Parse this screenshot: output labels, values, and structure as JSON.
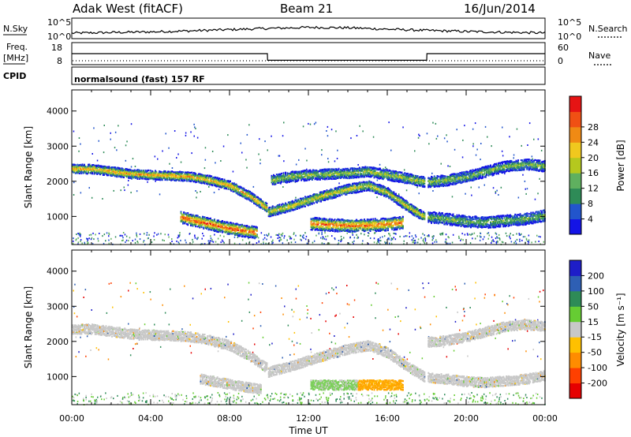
{
  "header": {
    "radar": "Adak West (fitACF)",
    "beam": "Beam 21",
    "date": "16/Jun/2014"
  },
  "strip": {
    "nsky_label": "N.Sky",
    "nsky_ticks": [
      "10^5",
      "10^0"
    ],
    "nsearch_label": "N.Search",
    "nsearch_ticks": [
      "10^5",
      "10^0"
    ],
    "freq_label": "Freq.",
    "freq_unit": "[MHz]",
    "freq_ticks": [
      "18",
      "8"
    ],
    "nave_label": "Nave",
    "nave_ticks": [
      "60",
      "0"
    ],
    "cpid_label": "CPID",
    "cpid_text": "normalsound (fast) 157 RF"
  },
  "panels": {
    "power_ylabel": "Slant Range [km]",
    "velocity_ylabel": "Slant Range [km]",
    "range_ticks": [
      "1000",
      "2000",
      "3000",
      "4000"
    ],
    "xlabel": "Time UT",
    "time_ticks": [
      "00:00",
      "04:00",
      "08:00",
      "12:00",
      "16:00",
      "20:00",
      "00:00"
    ]
  },
  "colorbars": {
    "power_label": "Power [dB]",
    "power_ticks": [
      "4",
      "8",
      "12",
      "16",
      "20",
      "24",
      "28"
    ],
    "power_colors": [
      "#1414e6",
      "#2255cc",
      "#2e8b57",
      "#5fb05f",
      "#b5c81e",
      "#f0c81e",
      "#f08a14",
      "#f05014",
      "#e61414"
    ],
    "velocity_label": "Velocity [m s⁻¹]",
    "velocity_ticks": [
      "200",
      "100",
      "50",
      "15",
      "-15",
      "-50",
      "-100",
      "-200"
    ],
    "velocity_colors": [
      "#1e1ec8",
      "#2e5fb4",
      "#2e8b57",
      "#66cc33",
      "#c8c8c8",
      "#ffc000",
      "#ff8c00",
      "#ff4000",
      "#e60000"
    ]
  },
  "chart_data": [
    {
      "type": "line",
      "title": "N.Sky / N.Search",
      "x_unit": "hours UT",
      "x": [
        0,
        2,
        4,
        6,
        8,
        10,
        12,
        14,
        16,
        18,
        20,
        22,
        24
      ],
      "series": [
        {
          "name": "N.Sky",
          "values": [
            0.27,
            0.3,
            0.33,
            0.38,
            0.44,
            0.5,
            0.55,
            0.53,
            0.46,
            0.4,
            0.35,
            0.31,
            0.28
          ]
        }
      ],
      "ylim": [
        0,
        1
      ]
    },
    {
      "type": "line",
      "title": "Freq. / Nave",
      "x": [
        0,
        9.92,
        9.93,
        18.0,
        18.01,
        24
      ],
      "series": [
        {
          "name": "Freq.",
          "values": [
            13,
            13,
            10,
            10,
            13,
            13
          ]
        }
      ],
      "ylim": [
        8,
        18
      ]
    },
    {
      "type": "heatmap",
      "title": "Power",
      "xlim": [
        0,
        24
      ],
      "ylim": [
        200,
        4600
      ],
      "bands": [
        {
          "t": [
            0,
            1,
            2,
            3,
            4,
            5,
            6,
            7,
            8,
            9,
            9.9
          ],
          "r": [
            2380,
            2370,
            2300,
            2230,
            2200,
            2180,
            2150,
            2050,
            1900,
            1600,
            1250
          ],
          "level": 0.72
        },
        {
          "t": [
            9.95,
            11,
            12,
            13,
            14,
            15,
            16,
            17,
            17.9
          ],
          "r": [
            1150,
            1300,
            1480,
            1650,
            1800,
            1900,
            1700,
            1300,
            1000
          ],
          "level": 0.6
        },
        {
          "t": [
            10.1,
            11,
            12,
            13,
            14,
            15,
            16,
            17,
            17.9
          ],
          "r": [
            2050,
            2150,
            2200,
            2230,
            2250,
            2300,
            2200,
            2100,
            2000
          ],
          "level": 0.5
        },
        {
          "t": [
            18.05,
            19,
            20,
            21,
            22,
            23,
            24
          ],
          "r": [
            2000,
            2050,
            2150,
            2300,
            2450,
            2500,
            2450
          ],
          "level": 0.45
        },
        {
          "t": [
            18.05,
            19,
            20,
            21,
            22,
            23,
            24
          ],
          "r": [
            1000,
            950,
            880,
            850,
            900,
            950,
            1050
          ],
          "level": 0.42
        },
        {
          "t": [
            5.5,
            6.2,
            7,
            7.8,
            8.6,
            9.4
          ],
          "r": [
            1000,
            900,
            800,
            700,
            620,
            560
          ],
          "level": 0.9
        },
        {
          "t": [
            12.1,
            13,
            14,
            15,
            16,
            16.8
          ],
          "r": [
            820,
            780,
            760,
            770,
            800,
            850
          ],
          "level": 0.85
        }
      ]
    },
    {
      "type": "heatmap",
      "title": "Velocity",
      "xlim": [
        0,
        24
      ],
      "ylim": [
        200,
        4600
      ],
      "bands": [
        {
          "t": [
            0,
            1,
            2,
            3,
            4,
            5,
            6,
            7,
            8,
            9,
            9.9
          ],
          "r": [
            2380,
            2370,
            2300,
            2230,
            2200,
            2180,
            2150,
            2050,
            1900,
            1600,
            1250
          ],
          "level": 0.0
        },
        {
          "t": [
            9.95,
            11,
            12,
            13,
            14,
            15,
            16,
            17,
            17.9
          ],
          "r": [
            1150,
            1300,
            1480,
            1650,
            1800,
            1900,
            1700,
            1300,
            1000
          ],
          "level": 0.0
        },
        {
          "t": [
            18.05,
            19,
            20,
            21,
            22,
            23,
            24
          ],
          "r": [
            2000,
            2050,
            2150,
            2300,
            2450,
            2500,
            2450
          ],
          "level": 0.0
        },
        {
          "t": [
            18.05,
            19,
            20,
            21,
            22,
            23,
            24
          ],
          "r": [
            1000,
            950,
            880,
            850,
            900,
            950,
            1050
          ],
          "level": 0.0
        },
        {
          "t": [
            6.5,
            7.2,
            8,
            8.8,
            9.6
          ],
          "r": [
            950,
            880,
            800,
            720,
            660
          ],
          "level": 0.0
        },
        {
          "t": [
            12.1,
            13,
            14,
            14.5
          ],
          "r": [
            780,
            780,
            780,
            780
          ],
          "level": 0.3
        },
        {
          "t": [
            14.5,
            15,
            16,
            16.8
          ],
          "r": [
            780,
            780,
            780,
            780
          ],
          "level": -0.7
        }
      ]
    }
  ]
}
